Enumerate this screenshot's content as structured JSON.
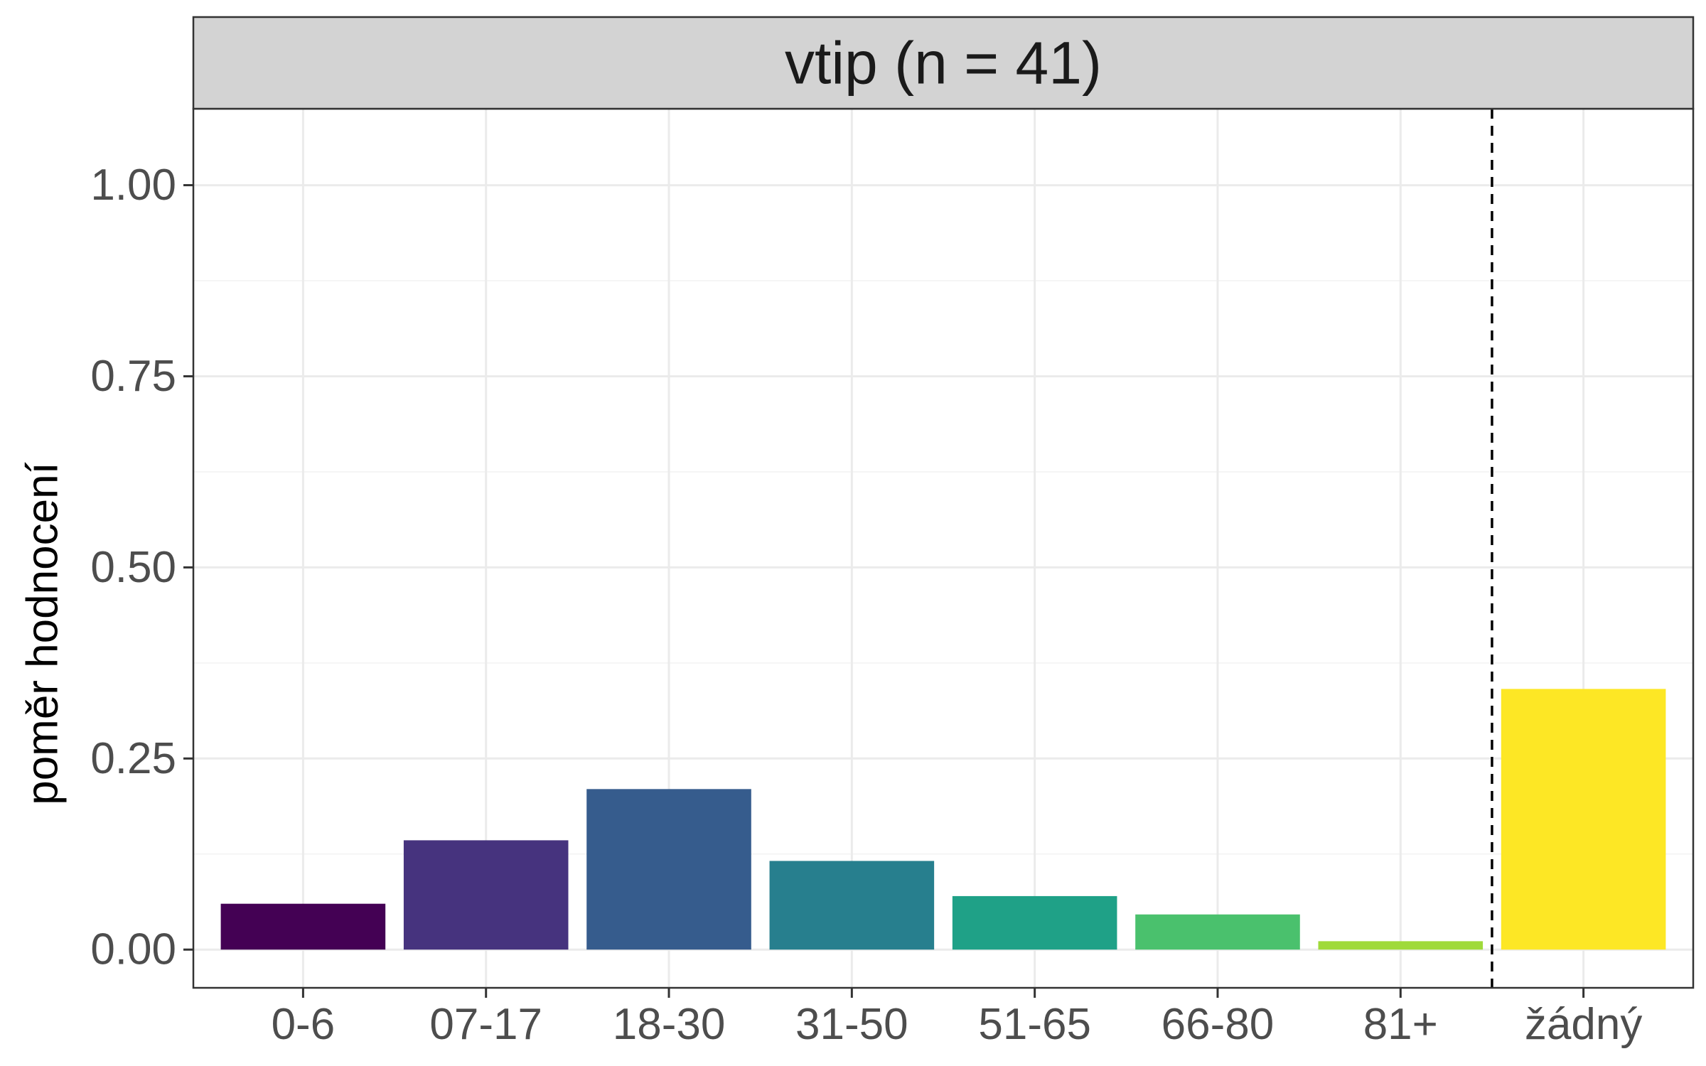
{
  "chart_data": {
    "type": "bar",
    "facet_title": "vtip (n = 41)",
    "ylabel": "poměr hodnocení",
    "xlabel": "",
    "categories": [
      "0-6",
      "07-17",
      "18-30",
      "31-50",
      "51-65",
      "66-80",
      "81+",
      "žádný"
    ],
    "values": [
      0.06,
      0.143,
      0.21,
      0.116,
      0.07,
      0.046,
      0.011,
      0.341
    ],
    "colors": [
      "#440154",
      "#46337E",
      "#365C8D",
      "#277F8E",
      "#1FA187",
      "#4AC16D",
      "#9FDA3A",
      "#FDE725"
    ],
    "ylim": [
      -0.05,
      1.1
    ],
    "y_ticks": [
      0,
      0.25,
      0.5,
      0.75,
      1
    ],
    "y_tick_labels": [
      "0.00",
      "0.25",
      "0.50",
      "0.75",
      "1.00"
    ],
    "reference_line": {
      "between": [
        "81+",
        "žádný"
      ],
      "style": "dashed"
    },
    "grid": true,
    "legend": "none",
    "theme": {
      "panel_border": "#333333",
      "strip_fill": "#D3D3D3",
      "grid_major": "#EBEBEB",
      "grid_minor": "#F5F5F5"
    }
  }
}
